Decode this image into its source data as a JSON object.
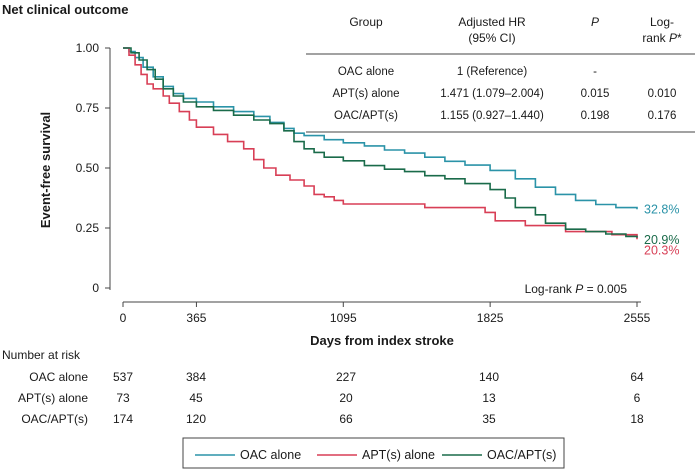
{
  "chart_data": {
    "type": "line",
    "title": "Net clinical outcome",
    "xlabel": "Days from index stroke",
    "ylabel": "Event-free survival",
    "xlim": [
      0,
      2555
    ],
    "ylim": [
      0,
      1.0
    ],
    "x_ticks": [
      {
        "value": 0,
        "label": "0"
      },
      {
        "value": 365,
        "label": "365"
      },
      {
        "value": 1095,
        "label": "1095"
      },
      {
        "value": 1825,
        "label": "1825"
      },
      {
        "value": 2555,
        "label": "2555"
      }
    ],
    "y_ticks": [
      {
        "value": 0,
        "label": "0"
      },
      {
        "value": 0.25,
        "label": "0.25"
      },
      {
        "value": 0.5,
        "label": "0.50"
      },
      {
        "value": 0.75,
        "label": "0.75"
      },
      {
        "value": 1.0,
        "label": "1.00"
      }
    ],
    "series": [
      {
        "name": "OAC alone",
        "color": "#2b93a8",
        "end_label": "32.8%",
        "points": [
          [
            0,
            1.0
          ],
          [
            30,
            0.985
          ],
          [
            60,
            0.96
          ],
          [
            100,
            0.92
          ],
          [
            150,
            0.88
          ],
          [
            200,
            0.84
          ],
          [
            250,
            0.81
          ],
          [
            300,
            0.79
          ],
          [
            365,
            0.775
          ],
          [
            450,
            0.755
          ],
          [
            550,
            0.735
          ],
          [
            650,
            0.715
          ],
          [
            730,
            0.69
          ],
          [
            800,
            0.665
          ],
          [
            850,
            0.645
          ],
          [
            900,
            0.635
          ],
          [
            1000,
            0.618
          ],
          [
            1095,
            0.605
          ],
          [
            1200,
            0.592
          ],
          [
            1300,
            0.575
          ],
          [
            1400,
            0.562
          ],
          [
            1500,
            0.545
          ],
          [
            1600,
            0.528
          ],
          [
            1700,
            0.512
          ],
          [
            1825,
            0.49
          ],
          [
            1950,
            0.455
          ],
          [
            2050,
            0.42
          ],
          [
            2150,
            0.39
          ],
          [
            2250,
            0.365
          ],
          [
            2350,
            0.348
          ],
          [
            2450,
            0.335
          ],
          [
            2555,
            0.328
          ]
        ]
      },
      {
        "name": "APT(s) alone",
        "color": "#d83f56",
        "end_label": "20.3%",
        "points": [
          [
            0,
            1.0
          ],
          [
            30,
            0.97
          ],
          [
            60,
            0.93
          ],
          [
            90,
            0.89
          ],
          [
            120,
            0.85
          ],
          [
            150,
            0.83
          ],
          [
            200,
            0.8
          ],
          [
            230,
            0.77
          ],
          [
            280,
            0.735
          ],
          [
            330,
            0.7
          ],
          [
            365,
            0.67
          ],
          [
            450,
            0.64
          ],
          [
            520,
            0.61
          ],
          [
            600,
            0.58
          ],
          [
            650,
            0.535
          ],
          [
            700,
            0.5
          ],
          [
            760,
            0.47
          ],
          [
            830,
            0.45
          ],
          [
            900,
            0.425
          ],
          [
            950,
            0.39
          ],
          [
            1000,
            0.38
          ],
          [
            1050,
            0.365
          ],
          [
            1095,
            0.35
          ],
          [
            1300,
            0.35
          ],
          [
            1500,
            0.335
          ],
          [
            1800,
            0.315
          ],
          [
            1850,
            0.28
          ],
          [
            2000,
            0.26
          ],
          [
            2200,
            0.235
          ],
          [
            2300,
            0.235
          ],
          [
            2430,
            0.222
          ],
          [
            2555,
            0.203
          ]
        ]
      },
      {
        "name": "OAC/APT(s)",
        "color": "#1a6b4a",
        "end_label": "20.9%",
        "points": [
          [
            0,
            1.0
          ],
          [
            40,
            0.98
          ],
          [
            80,
            0.95
          ],
          [
            120,
            0.91
          ],
          [
            160,
            0.87
          ],
          [
            200,
            0.83
          ],
          [
            250,
            0.8
          ],
          [
            300,
            0.775
          ],
          [
            365,
            0.755
          ],
          [
            450,
            0.74
          ],
          [
            550,
            0.72
          ],
          [
            650,
            0.7
          ],
          [
            730,
            0.685
          ],
          [
            800,
            0.655
          ],
          [
            850,
            0.61
          ],
          [
            900,
            0.58
          ],
          [
            950,
            0.565
          ],
          [
            1000,
            0.545
          ],
          [
            1095,
            0.53
          ],
          [
            1200,
            0.51
          ],
          [
            1300,
            0.495
          ],
          [
            1400,
            0.485
          ],
          [
            1500,
            0.468
          ],
          [
            1600,
            0.455
          ],
          [
            1700,
            0.435
          ],
          [
            1825,
            0.41
          ],
          [
            1900,
            0.375
          ],
          [
            1950,
            0.335
          ],
          [
            2050,
            0.305
          ],
          [
            2100,
            0.27
          ],
          [
            2200,
            0.245
          ],
          [
            2300,
            0.235
          ],
          [
            2400,
            0.225
          ],
          [
            2500,
            0.215
          ],
          [
            2555,
            0.209
          ]
        ]
      }
    ],
    "annotation": {
      "prefix": "Log-rank ",
      "p": "P",
      "suffix": " = 0.005"
    }
  },
  "inset_table": {
    "headers": {
      "group": "Group",
      "hr_line1": "Adjusted HR",
      "hr_line2": "(95% CI)",
      "p": "P",
      "lr_line1": "Log-",
      "lr_line2_prefix": "rank ",
      "lr_line2_p": "P",
      "lr_line2_mark": "*"
    },
    "rows": [
      {
        "group": "OAC alone",
        "hr": "1 (Reference)",
        "p": "-",
        "lr": ""
      },
      {
        "group": "APT(s) alone",
        "hr": "1.471 (1.079–2.004)",
        "p": "0.015",
        "lr": "0.010"
      },
      {
        "group": "OAC/APT(s)",
        "hr": "1.155 (0.927–1.440)",
        "p": "0.198",
        "lr": "0.176"
      }
    ]
  },
  "risk_table": {
    "title": "Number at risk",
    "rows": [
      {
        "label": "OAC alone",
        "values": [
          "537",
          "384",
          "227",
          "140",
          "64"
        ]
      },
      {
        "label": "APT(s) alone",
        "values": [
          "73",
          "45",
          "20",
          "13",
          "6"
        ]
      },
      {
        "label": "OAC/APT(s)",
        "values": [
          "174",
          "120",
          "66",
          "35",
          "18"
        ]
      }
    ]
  },
  "legend": {
    "items": [
      {
        "label": "OAC alone",
        "color": "#2b93a8"
      },
      {
        "label": "APT(s) alone",
        "color": "#d83f56"
      },
      {
        "label": "OAC/APT(s)",
        "color": "#1a6b4a"
      }
    ]
  }
}
